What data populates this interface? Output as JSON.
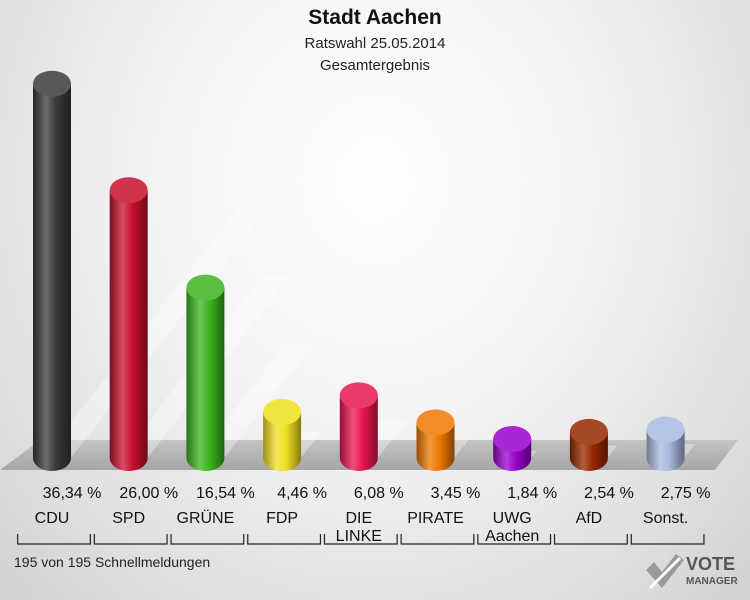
{
  "header": {
    "title": "Stadt Aachen",
    "subtitle1": "Ratswahl 25.05.2014",
    "subtitle2": "Gesamtergebnis"
  },
  "footer": {
    "text": "195 von 195 Schnellmeldungen"
  },
  "logo": {
    "line1": "VOTE",
    "line2": "MANAGER"
  },
  "chart_data": {
    "type": "bar",
    "title": "Stadt Aachen",
    "subtitle": "Ratswahl 25.05.2014 Gesamtergebnis",
    "unit": "%",
    "categories": [
      "CDU",
      "SPD",
      "GRÜNE",
      "FDP",
      "DIE LINKE",
      "PIRATE",
      "UWG Aachen",
      "AfD",
      "Sonst."
    ],
    "values": [
      36.34,
      26.0,
      16.54,
      4.46,
      6.08,
      3.45,
      1.84,
      2.54,
      2.75
    ],
    "value_labels": [
      "36,34 %",
      "26,00 %",
      "16,54 %",
      "4,46 %",
      "6,08 %",
      "3,45 %",
      "1,84 %",
      "2,54 %",
      "2,75 %"
    ],
    "colors": [
      "#3a3a3a",
      "#c8102e",
      "#3cb41e",
      "#f0e020",
      "#e8174f",
      "#f07800",
      "#9900cc",
      "#952800",
      "#a8b8e0"
    ],
    "grid": false,
    "legend": "none"
  }
}
